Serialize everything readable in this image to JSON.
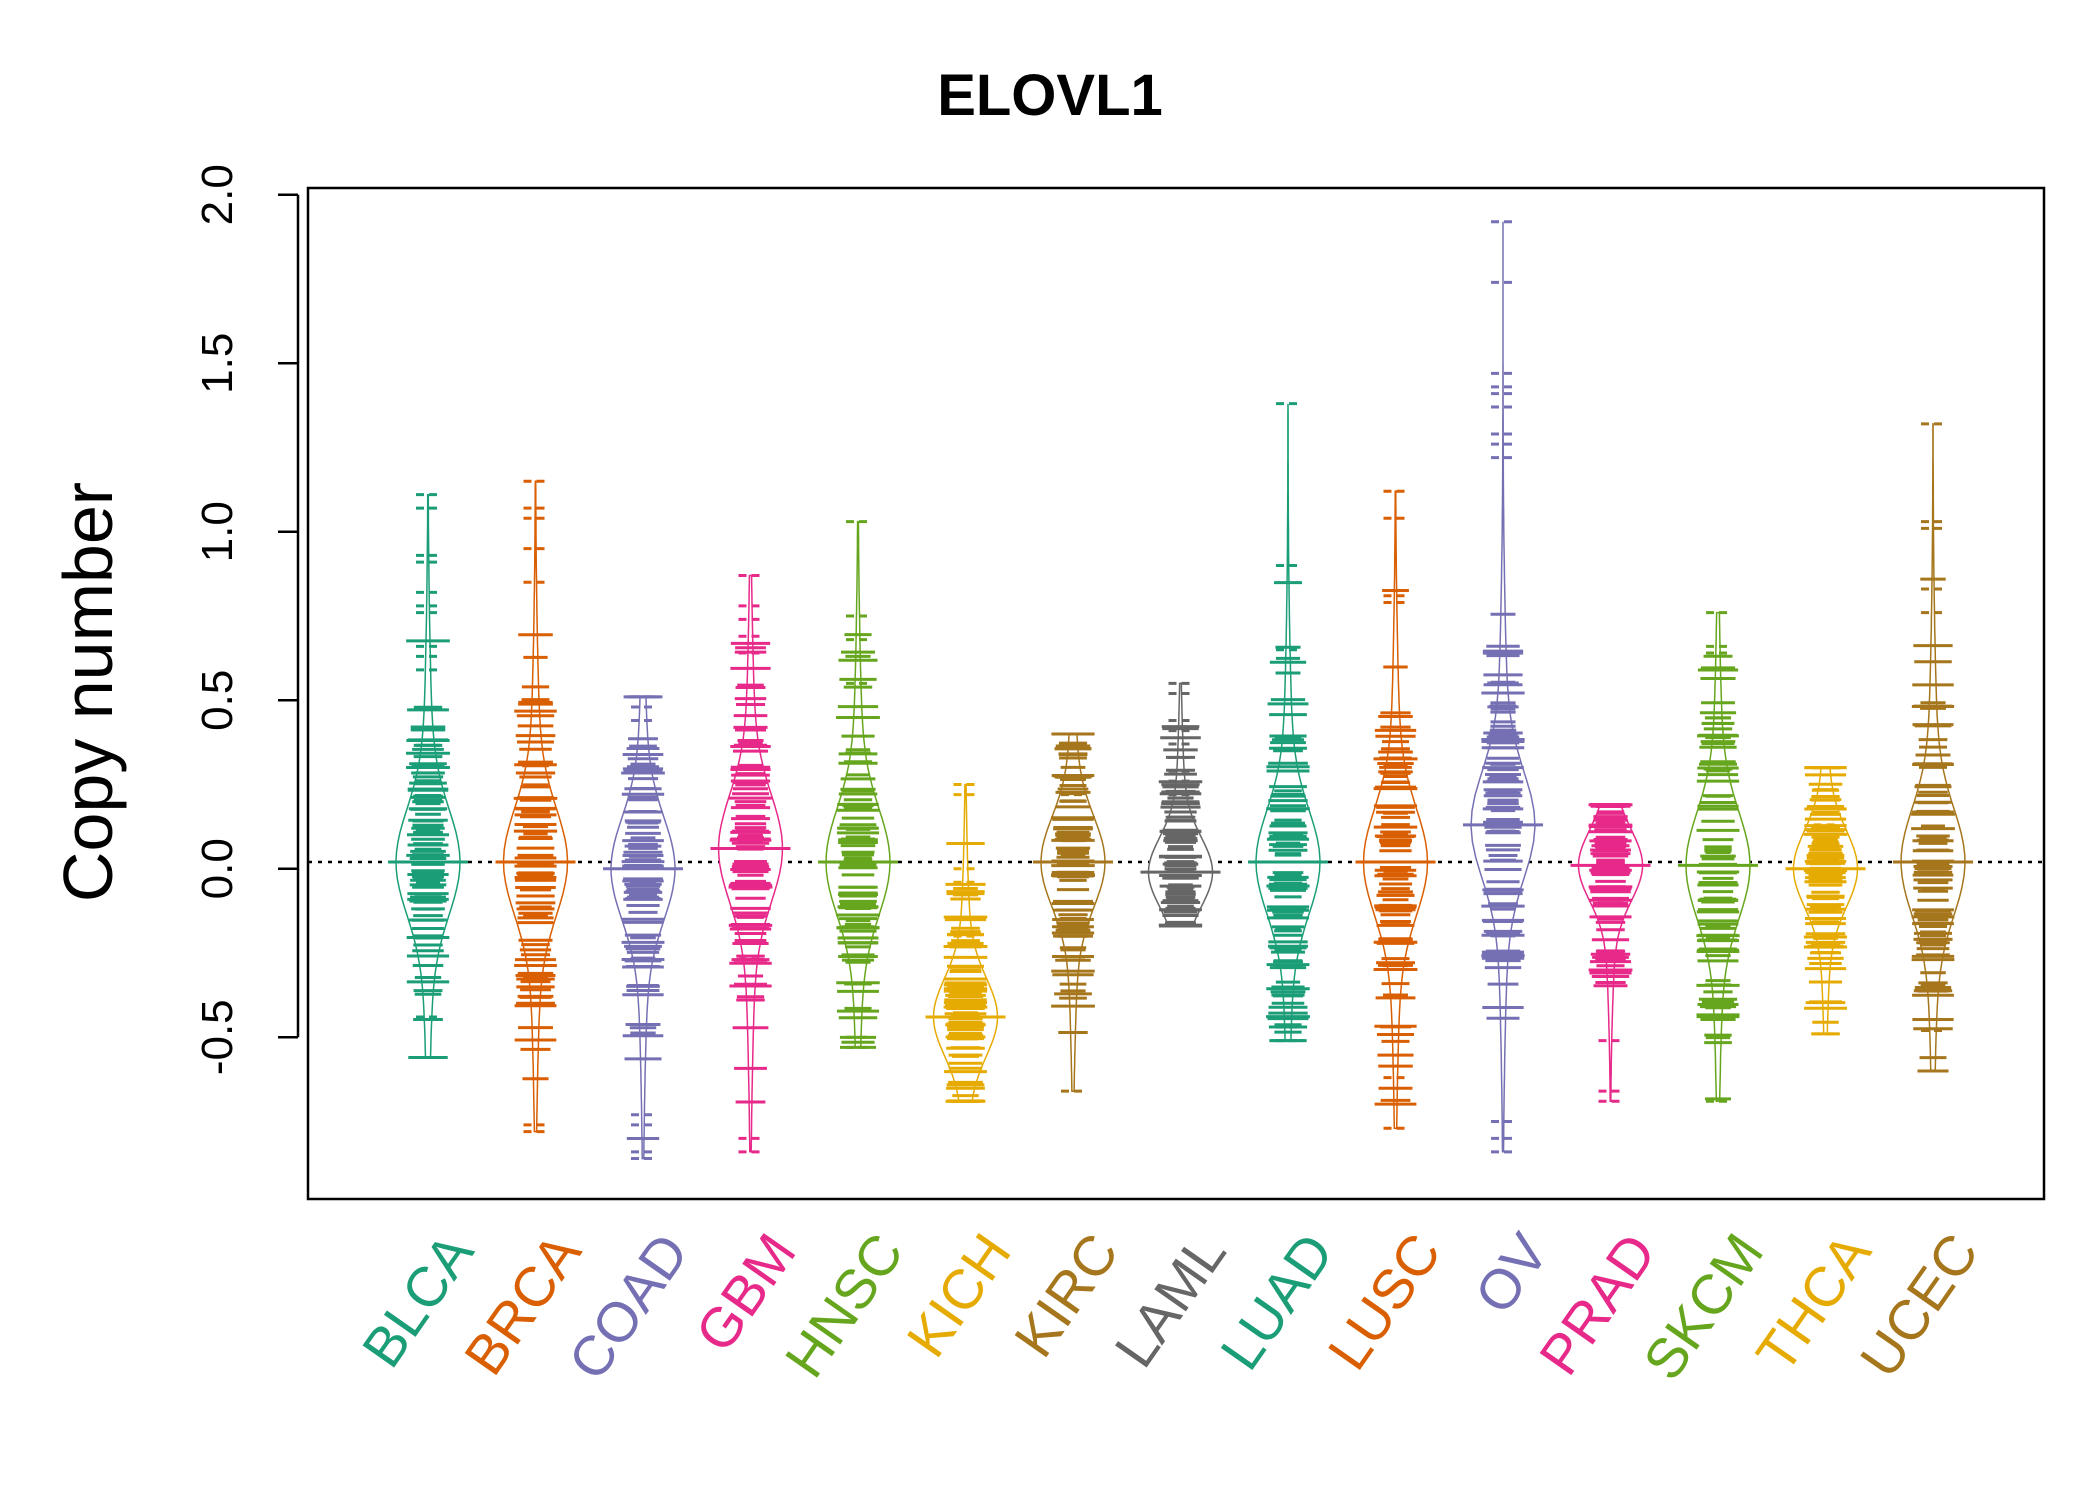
{
  "chart_data": {
    "type": "beanplot",
    "title": "ELOVL1",
    "xlabel": "",
    "ylabel": "Copy number",
    "ylim": [
      -0.98,
      2.02
    ],
    "yticks": [
      -0.5,
      0.0,
      0.5,
      1.0,
      1.5,
      2.0
    ],
    "ytick_labels": [
      "-0.5",
      "0.0",
      "0.5",
      "1.0",
      "1.5",
      "2.0"
    ],
    "reference_line": 0.02,
    "grid": false,
    "legend": "none",
    "categories": [
      "BLCA",
      "BRCA",
      "COAD",
      "GBM",
      "HNSC",
      "KICH",
      "KIRC",
      "LAML",
      "LUAD",
      "LUSC",
      "OV",
      "PRAD",
      "SKCM",
      "THCA",
      "UCEC"
    ],
    "colors": [
      "#1B9E77",
      "#D95F02",
      "#7570B3",
      "#E7298A",
      "#66A61E",
      "#E6AB02",
      "#A6761D",
      "#666666",
      "#1B9E77",
      "#D95F02",
      "#7570B3",
      "#E7298A",
      "#66A61E",
      "#E6AB02",
      "#A6761D"
    ],
    "series": [
      {
        "category": "BLCA",
        "min": -0.56,
        "max": 1.11,
        "mean": 0.02,
        "outliers": [
          1.11,
          1.07,
          0.93,
          0.91,
          0.82,
          0.78,
          0.76,
          0.66,
          0.63,
          0.59,
          -0.44,
          -0.56
        ]
      },
      {
        "category": "BRCA",
        "min": -0.78,
        "max": 1.15,
        "mean": 0.02,
        "outliers": [
          1.15,
          1.07,
          1.04,
          0.95,
          0.85,
          -0.76,
          -0.78
        ]
      },
      {
        "category": "COAD",
        "min": -0.86,
        "max": 0.51,
        "mean": 0.0,
        "outliers": [
          0.51,
          0.48,
          0.44,
          -0.73,
          -0.76,
          -0.84,
          -0.86
        ]
      },
      {
        "category": "GBM",
        "min": -0.84,
        "max": 0.87,
        "mean": 0.06,
        "outliers": [
          0.87,
          0.78,
          0.74,
          0.69,
          0.64,
          -0.26,
          -0.8,
          -0.84
        ]
      },
      {
        "category": "HNSC",
        "min": -0.53,
        "max": 1.03,
        "mean": 0.02,
        "outliers": [
          1.03,
          0.75,
          0.68,
          0.55,
          -0.5,
          -0.53
        ]
      },
      {
        "category": "KICH",
        "min": -0.69,
        "max": 0.25,
        "mean": -0.44,
        "outliers": [
          0.25,
          0.22,
          0.0,
          -0.04,
          -0.2,
          -0.69
        ]
      },
      {
        "category": "KIRC",
        "min": -0.66,
        "max": 0.4,
        "mean": 0.02,
        "outliers": [
          0.4,
          0.22,
          -0.66
        ]
      },
      {
        "category": "LAML",
        "min": -0.17,
        "max": 0.55,
        "mean": -0.01,
        "outliers": [
          0.55,
          0.52,
          0.44,
          0.41,
          0.37,
          0.33,
          0.29,
          0.26,
          0.22,
          -0.17
        ]
      },
      {
        "category": "LUAD",
        "min": -0.51,
        "max": 1.38,
        "mean": 0.02,
        "outliers": [
          1.38,
          0.9,
          0.65,
          -0.47,
          -0.51
        ]
      },
      {
        "category": "LUSC",
        "min": -0.77,
        "max": 1.12,
        "mean": 0.02,
        "outliers": [
          1.12,
          1.04,
          0.81,
          0.79,
          -0.62,
          -0.77
        ]
      },
      {
        "category": "OV",
        "min": -0.84,
        "max": 1.92,
        "mean": 0.13,
        "outliers": [
          1.92,
          1.74,
          1.47,
          1.43,
          1.41,
          1.37,
          1.29,
          1.26,
          1.22,
          -0.75,
          -0.8,
          -0.84
        ]
      },
      {
        "category": "PRAD",
        "min": -0.69,
        "max": 0.19,
        "mean": 0.01,
        "outliers": [
          -0.51,
          -0.66,
          -0.69
        ]
      },
      {
        "category": "SKCM",
        "min": -0.69,
        "max": 0.76,
        "mean": 0.01,
        "outliers": [
          0.76,
          0.66,
          0.64,
          -0.69
        ]
      },
      {
        "category": "THCA",
        "min": -0.49,
        "max": 0.3,
        "mean": 0.0,
        "outliers": [
          0.3,
          0.13,
          -0.2,
          -0.49
        ]
      },
      {
        "category": "UCEC",
        "min": -0.6,
        "max": 1.32,
        "mean": 0.02,
        "outliers": [
          1.32,
          1.03,
          1.01,
          0.83,
          0.76,
          -0.48,
          -0.6
        ]
      }
    ]
  }
}
